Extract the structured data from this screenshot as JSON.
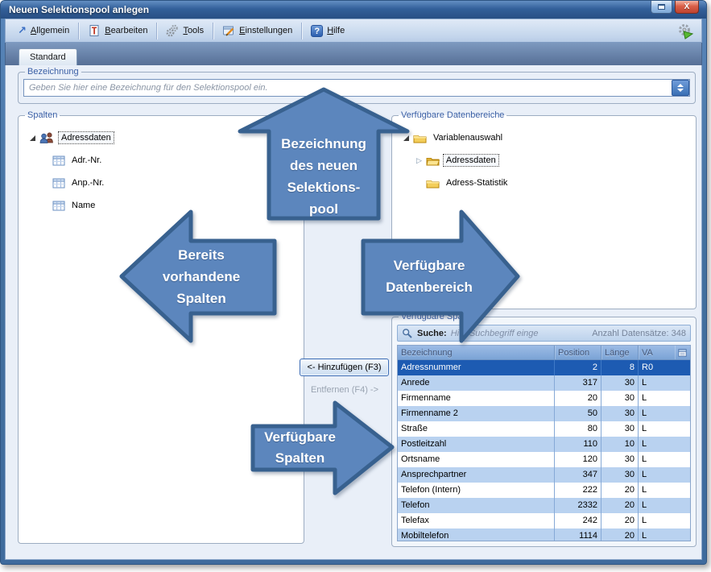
{
  "window": {
    "title": "Neuen Selektionspool anlegen",
    "controls": {
      "restore_glyph": "",
      "close_glyph": "X"
    }
  },
  "toolbar": {
    "items": [
      {
        "label": "Allgemein",
        "icon": "arrow-up-right"
      },
      {
        "label": "Bearbeiten",
        "icon": "notepad-pen"
      },
      {
        "label": "Tools",
        "icon": "gears"
      },
      {
        "label": "Einstellungen",
        "icon": "settings-window"
      },
      {
        "label": "Hilfe",
        "icon": "question-mark"
      }
    ],
    "allgemein_glyph": "↗",
    "hilfe_glyph": "?"
  },
  "tabs": {
    "standard_label": "Standard"
  },
  "panels": {
    "bezeichnung": {
      "legend": "Bezeichnung",
      "input_value": "",
      "input_placeholder": "Geben Sie hier eine Bezeichnung für den Selektionspool ein."
    },
    "spalten": {
      "legend": "Spalten",
      "root_label": "Adressdaten",
      "children": [
        "Adr.-Nr.",
        "Anp.-Nr.",
        "Name"
      ]
    },
    "datenbereiche": {
      "legend": "Verfügbare Datenbereiche",
      "root_label": "Variablenauswahl",
      "children": [
        "Adressdaten",
        "Adress-Statistik"
      ]
    },
    "verfuegbare_spalten": {
      "legend": "Verfügbare Spalten",
      "search_label": "Suche:",
      "search_placeholder": "Hier Suchbegriff einge",
      "record_count_label": "Anzahl Datensätze: 348",
      "table": {
        "columns": [
          "Bezeichnung",
          "Position",
          "Länge",
          "VA"
        ],
        "selected_row_index": 0,
        "rows": [
          [
            "Adressnummer",
            "2",
            "8",
            "R0"
          ],
          [
            "Anrede",
            "317",
            "30",
            "L"
          ],
          [
            "Firmenname",
            "20",
            "30",
            "L"
          ],
          [
            "Firmenname 2",
            "50",
            "30",
            "L"
          ],
          [
            "Straße",
            "80",
            "30",
            "L"
          ],
          [
            "Postleitzahl",
            "110",
            "10",
            "L"
          ],
          [
            "Ortsname",
            "120",
            "30",
            "L"
          ],
          [
            "Ansprechpartner",
            "347",
            "30",
            "L"
          ],
          [
            "Telefon (Intern)",
            "222",
            "20",
            "L"
          ],
          [
            "Telefon",
            "2332",
            "20",
            "L"
          ],
          [
            "Telefax",
            "242",
            "20",
            "L"
          ],
          [
            "Mobiltelefon",
            "1114",
            "20",
            "L"
          ]
        ]
      }
    }
  },
  "transfer_buttons": {
    "add_label": "<- Hinzufügen (F3)",
    "remove_label": "Entfernen (F4) ->"
  },
  "annotation_arrows": {
    "top": "Bezeichnung\ndes neuen\nSelektions-\npool",
    "left": "Bereits\nvorhandene\nSpalten",
    "right": "Verfügbare\nDatenbereich",
    "bottom": "Verfügbare\nSpalten"
  },
  "colors": {
    "titlebar": "#33609a",
    "arrow_fill": "#5c86bd",
    "arrow_border": "#38618f",
    "selected_row": "#1d5bb2",
    "row_alt": "#b9d2f0",
    "group_caption": "#3a5fa5"
  }
}
